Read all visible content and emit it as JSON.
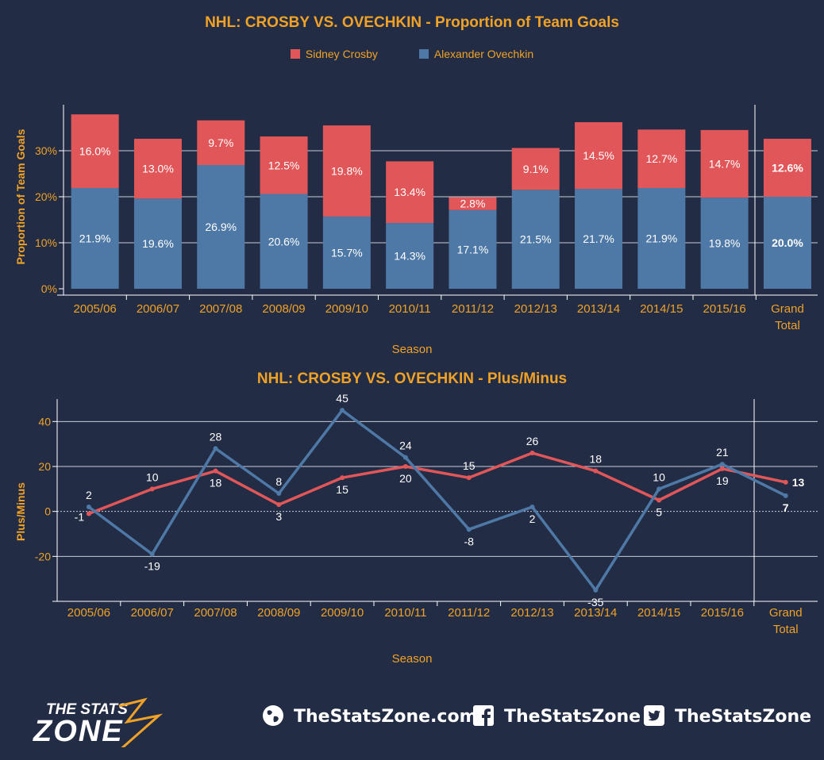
{
  "chart_data": [
    {
      "type": "bar",
      "stacked": true,
      "title": "NHL: CROSBY VS. OVECHKIN - Proportion of Team Goals",
      "xlabel": "Season",
      "ylabel": "Proportion of Team Goals",
      "categories": [
        "2005/06",
        "2006/07",
        "2007/08",
        "2008/09",
        "2009/10",
        "2010/11",
        "2011/12",
        "2012/13",
        "2013/14",
        "2014/15",
        "2015/16",
        "Grand Total"
      ],
      "series": [
        {
          "name": "Alexander Ovechkin",
          "color": "#4e79a7",
          "values": [
            21.9,
            19.6,
            26.9,
            20.6,
            15.7,
            14.3,
            17.1,
            21.5,
            21.7,
            21.9,
            19.8,
            20.0
          ],
          "labels": [
            "21.9%",
            "19.6%",
            "26.9%",
            "20.6%",
            "15.7%",
            "14.3%",
            "17.1%",
            "21.5%",
            "21.7%",
            "21.9%",
            "19.8%",
            "20.0%"
          ]
        },
        {
          "name": "Sidney Crosby",
          "color": "#e15759",
          "values": [
            16.0,
            13.0,
            9.7,
            12.5,
            19.8,
            13.4,
            2.8,
            9.1,
            14.5,
            12.7,
            14.7,
            12.6
          ],
          "labels": [
            "16.0%",
            "13.0%",
            "9.7%",
            "12.5%",
            "19.8%",
            "13.4%",
            "2.8%",
            "9.1%",
            "14.5%",
            "12.7%",
            "14.7%",
            "12.6%"
          ]
        }
      ],
      "yticks": [
        "0%",
        "10%",
        "20%",
        "30%"
      ],
      "ylim": [
        0,
        40
      ],
      "grid": true,
      "legend": "top-center"
    },
    {
      "type": "line",
      "title": "NHL: CROSBY VS. OVECHKIN - Plus/Minus",
      "xlabel": "Season",
      "ylabel": "Plus/Minus",
      "categories": [
        "2005/06",
        "2006/07",
        "2007/08",
        "2008/09",
        "2009/10",
        "2010/11",
        "2011/12",
        "2012/13",
        "2013/14",
        "2014/15",
        "2015/16",
        "Grand Total"
      ],
      "series": [
        {
          "name": "Sidney Crosby",
          "color": "#e15759",
          "values": [
            -1,
            10,
            18,
            3,
            15,
            20,
            15,
            26,
            18,
            5,
            19,
            13
          ]
        },
        {
          "name": "Alexander Ovechkin",
          "color": "#4e79a7",
          "values": [
            2,
            -19,
            28,
            8,
            45,
            24,
            -8,
            2,
            -35,
            10,
            21,
            7
          ]
        }
      ],
      "yticks": [
        "-20",
        "0",
        "20",
        "40"
      ],
      "ylim": [
        -40,
        50
      ],
      "grid": true
    }
  ],
  "legend": {
    "crosby": "Sidney Crosby",
    "ovechkin": "Alexander Ovechkin"
  },
  "footer": {
    "logo_line1": "THE STATS",
    "logo_line2": "ZONE",
    "website": "TheStatsZone.com",
    "facebook": "TheStatsZone",
    "twitter": "TheStatsZone",
    "icons": [
      "globe-icon",
      "facebook-icon",
      "twitter-icon"
    ]
  },
  "colors": {
    "background": "#232c45",
    "accent": "#f0a226",
    "crosby": "#e15759",
    "ovechkin": "#4e79a7"
  }
}
